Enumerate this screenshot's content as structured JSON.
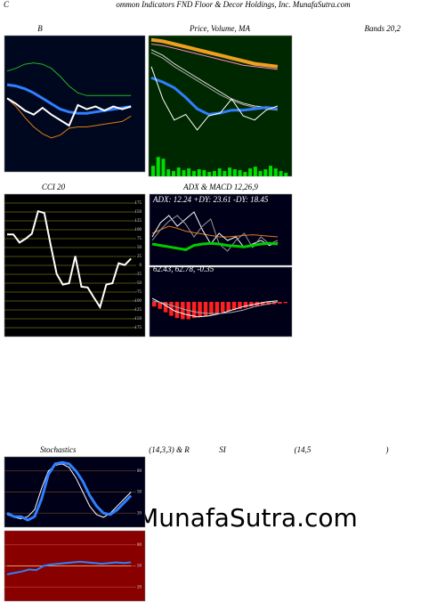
{
  "header": {
    "initial": "C",
    "title": "ommon Indicators FND Floor & Decor Holdings, Inc. MunafaSutra.com"
  },
  "watermark": "MunafaSutra.com",
  "chart_data": [
    {
      "type": "line",
      "title": "B",
      "subtitle": "Bands 20,2",
      "background": "#000820",
      "ylim": [
        0,
        100
      ],
      "series": [
        {
          "color": "#22b522",
          "values": [
            74,
            76,
            79,
            80,
            79,
            76,
            70,
            63,
            58,
            56,
            56,
            56,
            56,
            56,
            56
          ]
        },
        {
          "color": "#e07b10",
          "values": [
            54,
            48,
            40,
            33,
            28,
            25,
            27,
            32,
            33,
            33,
            34,
            35,
            36,
            37,
            41
          ]
        },
        {
          "color": "#2f7fff",
          "width": 3,
          "values": [
            64,
            63,
            61,
            58,
            54,
            50,
            46,
            44,
            43,
            43,
            44,
            45,
            46,
            47,
            48
          ]
        },
        {
          "color": "#ffffff",
          "width": 2,
          "values": [
            54,
            50,
            45,
            42,
            47,
            42,
            38,
            34,
            49,
            46,
            48,
            45,
            48,
            46,
            48
          ]
        }
      ]
    },
    {
      "type": "line",
      "title": "Price, Volume, MA",
      "background": "#002800",
      "ylim": [
        0,
        100
      ],
      "series": [
        {
          "color": "#f0a020",
          "width": 4,
          "values": [
            97,
            96,
            94,
            92,
            90,
            88,
            86,
            84,
            82,
            80,
            79,
            78
          ]
        },
        {
          "color": "#ff88cc",
          "values": [
            94,
            93,
            91,
            89,
            87,
            85,
            83,
            81,
            79,
            78,
            77,
            76
          ]
        },
        {
          "color": "#dddddd",
          "values": [
            90,
            86,
            80,
            75,
            70,
            65,
            60,
            55,
            52,
            50,
            49,
            48
          ]
        },
        {
          "color": "#aaaaaa",
          "values": [
            88,
            84,
            78,
            73,
            68,
            63,
            58,
            54,
            51,
            49,
            48,
            47
          ]
        },
        {
          "color": "#2f7fff",
          "width": 3,
          "values": [
            70,
            67,
            63,
            56,
            48,
            44,
            45,
            47,
            47,
            48,
            49,
            48
          ]
        },
        {
          "color": "#ffffff",
          "values": [
            78,
            55,
            40,
            44,
            33,
            43,
            45,
            55,
            43,
            40,
            47,
            50
          ]
        }
      ],
      "bars": {
        "color": "#00dd00",
        "ylim": [
          0,
          800
        ],
        "values": [
          60,
          110,
          100,
          40,
          30,
          50,
          35,
          45,
          30,
          40,
          35,
          25,
          30,
          45,
          30,
          50,
          40,
          35,
          25,
          45,
          55,
          30,
          40,
          60,
          45,
          30,
          20
        ]
      }
    },
    {
      "type": "line",
      "title": "CCI 20",
      "background": "#000000",
      "ylim": [
        -200,
        200
      ],
      "grid": true,
      "gridcolor": "#6b6b10",
      "yticks": [
        175,
        150,
        125,
        100,
        75,
        50,
        25,
        0,
        -25,
        -50,
        -75,
        -100,
        -125,
        -150,
        -175
      ],
      "series": [
        {
          "color": "#ffffff",
          "width": 2,
          "values": [
            87,
            87,
            64,
            75,
            89,
            152,
            147,
            60,
            -24,
            -54,
            -50,
            26,
            -60,
            -62,
            -90,
            -117,
            -54,
            -50,
            6,
            1,
            19
          ]
        }
      ]
    },
    {
      "type": "line",
      "title": "ADX  & MACD 12,26,9",
      "subtitle": "ADX: 12.24  +DY: 23.61 -DY: 18.45",
      "background": "#000018",
      "ylim": [
        0,
        100
      ],
      "series": [
        {
          "color": "#e07b10",
          "values": [
            45,
            50,
            55,
            52,
            48,
            46,
            44,
            42,
            40,
            40,
            41,
            42,
            43,
            42,
            41,
            40
          ]
        },
        {
          "color": "#ffffff",
          "values": [
            40,
            60,
            70,
            55,
            65,
            75,
            50,
            30,
            45,
            35,
            40,
            25,
            30,
            35,
            28,
            32
          ]
        },
        {
          "color": "#999999",
          "values": [
            35,
            50,
            62,
            70,
            58,
            40,
            55,
            65,
            30,
            20,
            35,
            45,
            25,
            40,
            30,
            35
          ]
        },
        {
          "color": "#00cc00",
          "width": 3,
          "values": [
            30,
            28,
            26,
            24,
            22,
            28,
            30,
            31,
            30,
            28,
            27,
            26,
            28,
            30,
            31,
            30
          ]
        }
      ]
    },
    {
      "type": "line",
      "subtitle": "62.43, 62.78, -0.35",
      "background": "#000018",
      "ylim": [
        -3,
        3
      ],
      "series": [
        {
          "color": "#ffffff",
          "values": [
            0.3,
            -0.2,
            -0.8,
            -1.1,
            -1.3,
            -1.2,
            -1,
            -0.7,
            -0.4,
            -0.2,
            0,
            0.1
          ]
        },
        {
          "color": "#aaaaaa",
          "values": [
            0.1,
            -0.1,
            -0.4,
            -0.7,
            -0.9,
            -1.0,
            -1.0,
            -0.9,
            -0.7,
            -0.4,
            -0.2,
            0
          ]
        }
      ],
      "bars": {
        "color": "#ff2020",
        "ylim": [
          -3,
          3
        ],
        "values": [
          -0.4,
          -0.6,
          -0.9,
          -1.2,
          -1.4,
          -1.5,
          -1.5,
          -1.4,
          -1.3,
          -1.2,
          -1.1,
          -1.0,
          -0.9,
          -0.8,
          -0.7,
          -0.6,
          -0.5,
          -0.4,
          -0.35,
          -0.3,
          -0.25,
          -0.2,
          -0.15,
          -0.1
        ]
      }
    },
    {
      "type": "line",
      "title_parts": [
        "Stochastics",
        "(14,3,3) & R",
        "SI",
        "(14,5",
        ")"
      ],
      "background": "#000018",
      "ylim": [
        0,
        100
      ],
      "grid": true,
      "gridcolor": "#704020",
      "yticks": [
        80,
        50,
        20
      ],
      "series": [
        {
          "color": "#ffffff",
          "values": [
            18,
            14,
            12,
            15,
            25,
            55,
            80,
            88,
            90,
            85,
            70,
            50,
            30,
            18,
            14,
            20,
            30,
            40,
            50
          ]
        },
        {
          "color": "#2f7fff",
          "width": 3,
          "values": [
            20,
            15,
            15,
            10,
            15,
            40,
            75,
            90,
            92,
            90,
            80,
            65,
            45,
            30,
            20,
            18,
            25,
            35,
            45
          ]
        }
      ]
    },
    {
      "type": "line",
      "background": "#880000",
      "ylim": [
        0,
        100
      ],
      "grid": true,
      "gridcolor": "#cc4444",
      "yticks": [
        80,
        50,
        20
      ],
      "series": [
        {
          "color": "#e0a060",
          "values": [
            50,
            50,
            50,
            50,
            50,
            50,
            50,
            50,
            50,
            50,
            50,
            50,
            50,
            50,
            50,
            50,
            50,
            50
          ]
        },
        {
          "color": "#2f7fff",
          "width": 2,
          "values": [
            38,
            40,
            42,
            45,
            44,
            50,
            52,
            53,
            54,
            55,
            56,
            55,
            54,
            53,
            54,
            55,
            54,
            55
          ]
        }
      ]
    }
  ]
}
